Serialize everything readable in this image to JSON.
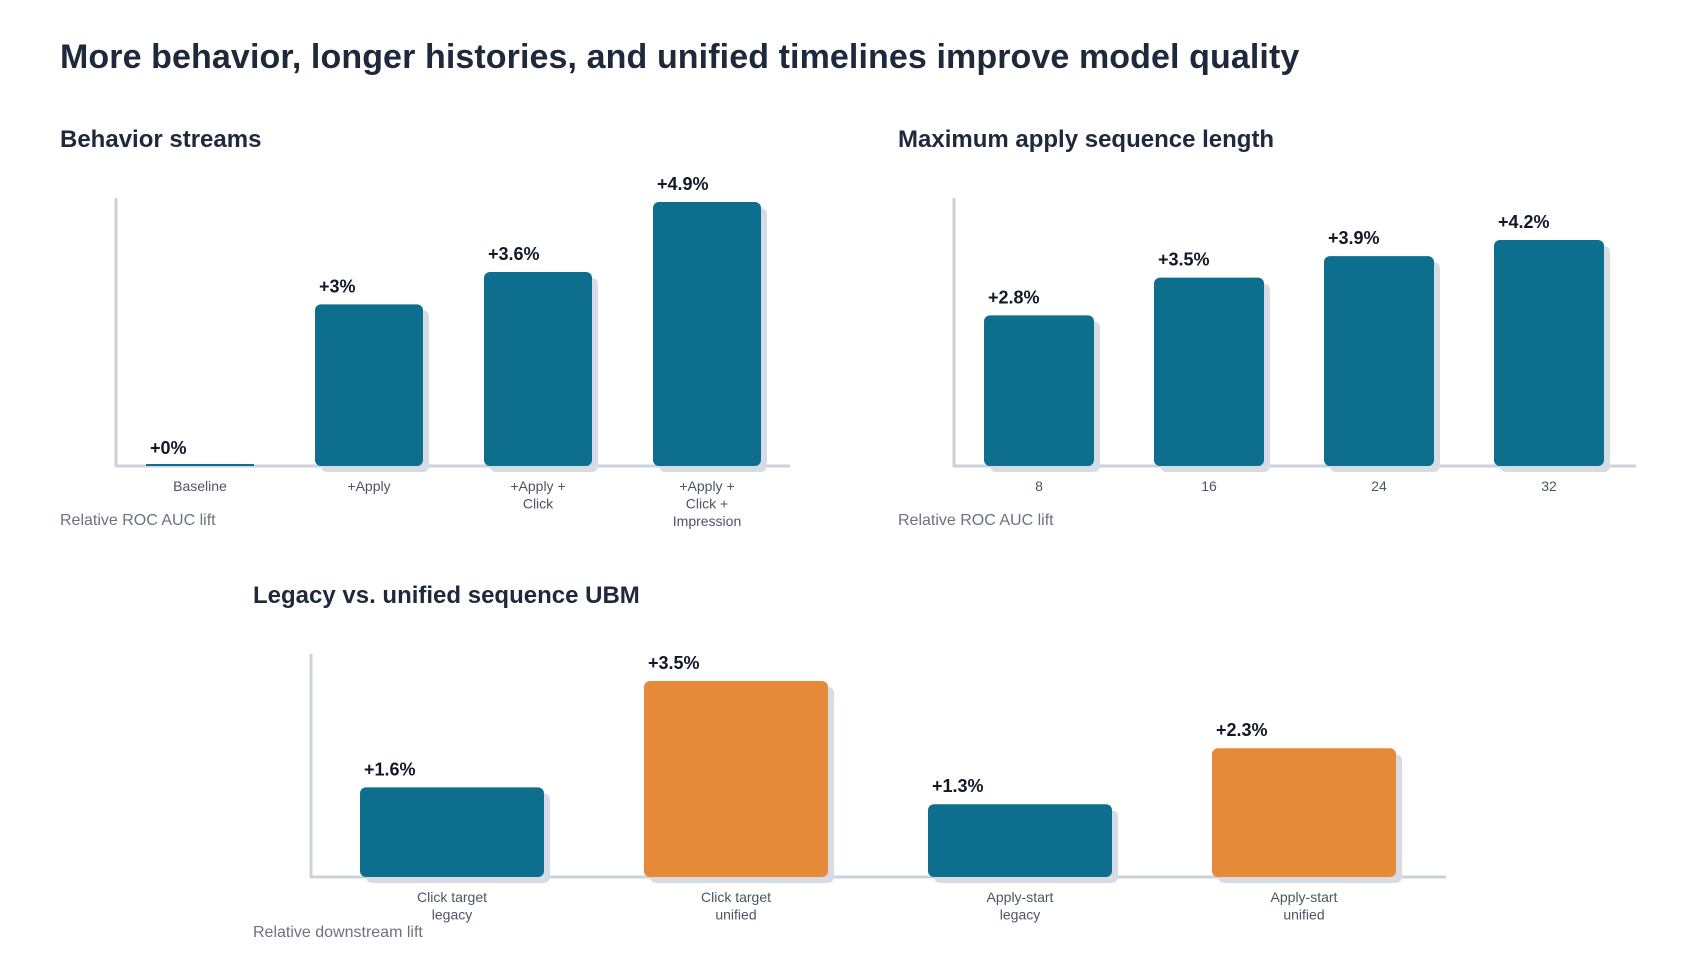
{
  "page": {
    "title": "More behavior, longer histories, and unified timelines improve model quality"
  },
  "colors": {
    "legacy": "#0e6e8e",
    "unified": "#e58a39",
    "shadow": "#d7dce4",
    "axis": "#cbd2db"
  },
  "panels": {
    "streams": {
      "title": "Behavior streams",
      "axis_note": "Relative ROC AUC lift"
    },
    "length": {
      "title": "Maximum apply sequence length",
      "axis_note": "Relative ROC AUC lift"
    },
    "ubm": {
      "title": "Legacy vs. unified sequence UBM",
      "axis_note": "Relative downstream lift"
    }
  },
  "chart_data": [
    {
      "type": "bar",
      "title": "Behavior streams",
      "ylabel": "Relative ROC AUC lift",
      "categories": [
        [
          "Baseline"
        ],
        [
          "+Apply"
        ],
        [
          "+Apply +",
          "Click"
        ],
        [
          "+Apply +",
          "Click +",
          "Impression"
        ]
      ],
      "values": [
        0,
        3,
        3.6,
        4.9
      ],
      "labels": [
        "+0%",
        "+3%",
        "+3.6%",
        "+4.9%"
      ],
      "ylim": [
        0,
        4.9
      ],
      "colors": [
        "legacy",
        "legacy",
        "legacy",
        "legacy"
      ]
    },
    {
      "type": "bar",
      "title": "Maximum apply sequence length",
      "ylabel": "Relative ROC AUC lift",
      "categories": [
        [
          "8"
        ],
        [
          "16"
        ],
        [
          "24"
        ],
        [
          "32"
        ]
      ],
      "values": [
        2.8,
        3.5,
        3.9,
        4.2
      ],
      "labels": [
        "+2.8%",
        "+3.5%",
        "+3.9%",
        "+4.2%"
      ],
      "ylim": [
        0,
        4.2
      ],
      "colors": [
        "legacy",
        "legacy",
        "legacy",
        "legacy"
      ]
    },
    {
      "type": "bar",
      "title": "Legacy vs. unified sequence UBM",
      "ylabel": "Relative downstream lift",
      "categories": [
        [
          "Click target",
          "legacy"
        ],
        [
          "Click target",
          "unified"
        ],
        [
          "Apply-start",
          "legacy"
        ],
        [
          "Apply-start",
          "unified"
        ]
      ],
      "values": [
        1.6,
        3.5,
        1.3,
        2.3
      ],
      "labels": [
        "+1.6%",
        "+3.5%",
        "+1.3%",
        "+2.3%"
      ],
      "ylim": [
        0,
        3.5
      ],
      "colors": [
        "legacy",
        "unified",
        "legacy",
        "unified"
      ]
    }
  ]
}
